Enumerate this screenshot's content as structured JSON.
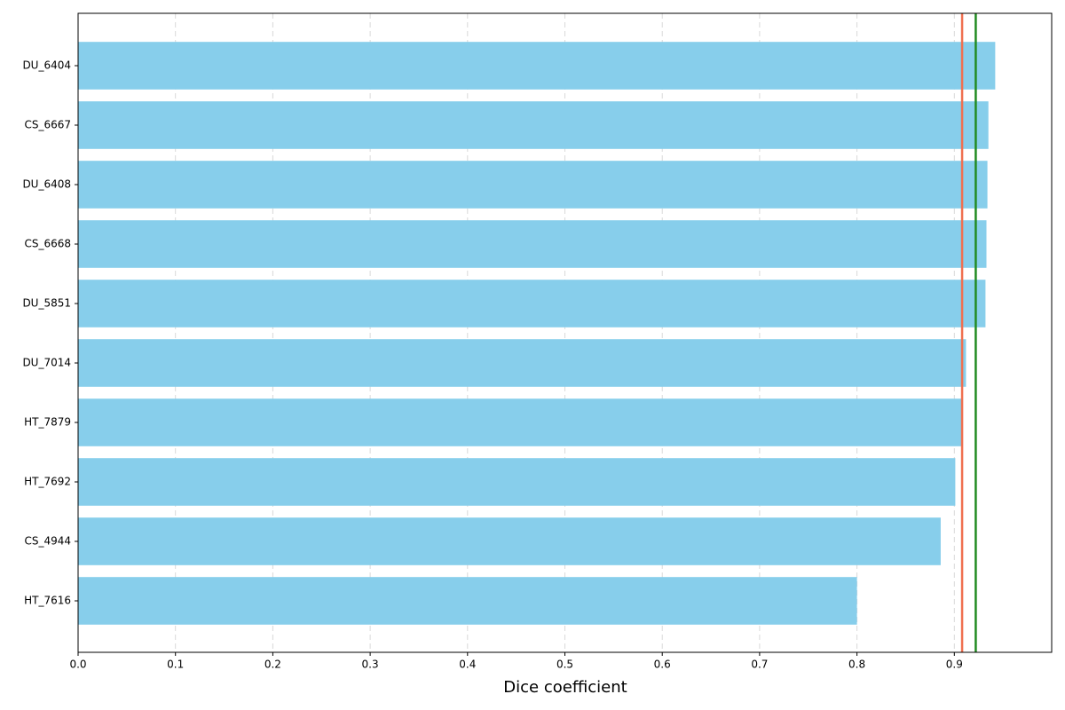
{
  "chart_data": {
    "type": "barh",
    "x_label": "Dice coefficient",
    "categories": [
      "DU_6404",
      "CS_6667",
      "DU_6408",
      "CS_6668",
      "DU_5851",
      "DU_7014",
      "HT_7879",
      "HT_7692",
      "CS_4944",
      "HT_7616"
    ],
    "values": [
      0.942,
      0.935,
      0.934,
      0.933,
      0.932,
      0.912,
      0.908,
      0.901,
      0.886,
      0.8
    ],
    "color": "#87ceeb",
    "xlim": [
      0,
      1.0
    ],
    "xticks": [
      {
        "value": 0,
        "label": "0.0"
      },
      0.1,
      0.2,
      0.3,
      0.4,
      0.5,
      0.6,
      0.7,
      0.8,
      0.9
    ],
    "grid": true,
    "reference_lines": [
      {
        "value": 0.908,
        "color": "#f07050"
      },
      {
        "value": 0.922,
        "color": "#228b22"
      }
    ]
  }
}
